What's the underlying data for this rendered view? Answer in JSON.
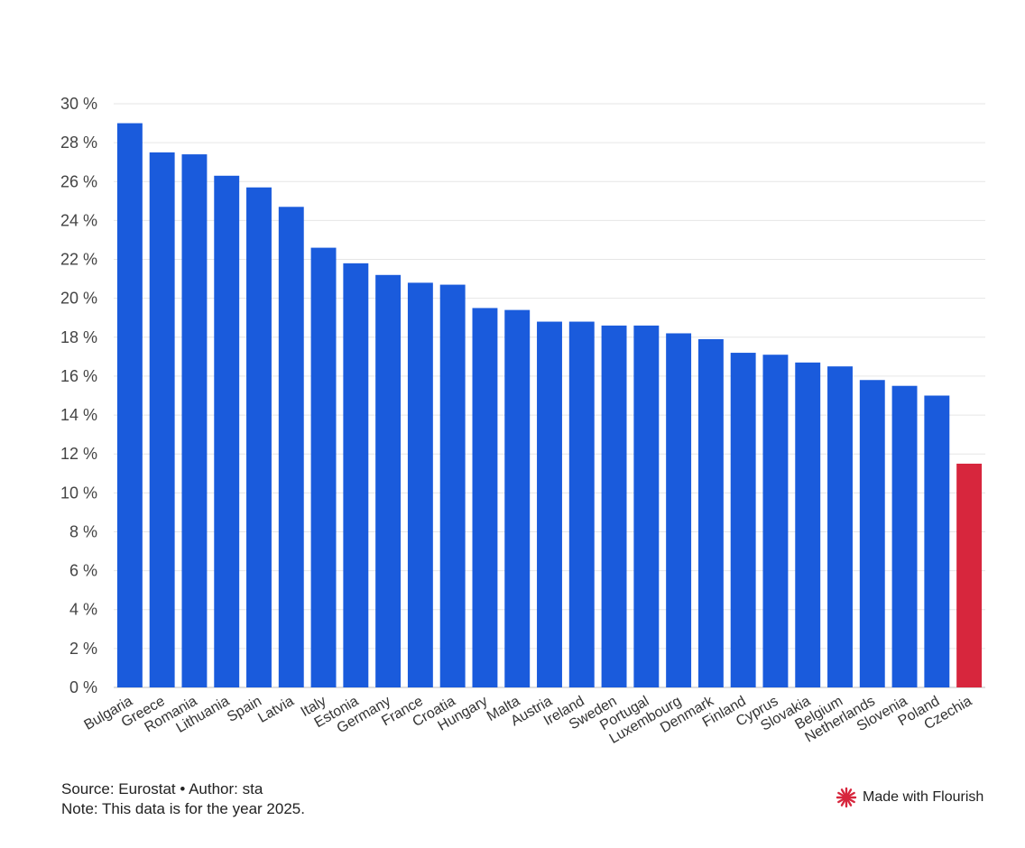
{
  "chart_data": {
    "type": "bar",
    "title": "",
    "xlabel": "",
    "ylabel": "",
    "ylim": [
      0,
      30
    ],
    "y_ticks": [
      0,
      2,
      4,
      6,
      8,
      10,
      12,
      14,
      16,
      18,
      20,
      22,
      24,
      26,
      28,
      30
    ],
    "y_tick_suffix": " %",
    "grid": true,
    "categories": [
      "Bulgaria",
      "Greece",
      "Romania",
      "Lithuania",
      "Spain",
      "Latvia",
      "Italy",
      "Estonia",
      "Germany",
      "France",
      "Croatia",
      "Hungary",
      "Malta",
      "Austria",
      "Ireland",
      "Sweden",
      "Portugal",
      "Luxembourg",
      "Denmark",
      "Finland",
      "Cyprus",
      "Slovakia",
      "Belgium",
      "Netherlands",
      "Slovenia",
      "Poland",
      "Czechia"
    ],
    "values": [
      29.0,
      27.5,
      27.4,
      26.3,
      25.7,
      24.7,
      22.6,
      21.8,
      21.2,
      20.8,
      20.7,
      19.5,
      19.4,
      18.8,
      18.8,
      18.6,
      18.6,
      18.2,
      17.9,
      17.2,
      17.1,
      16.7,
      16.5,
      15.8,
      15.5,
      15.0,
      11.5
    ],
    "colors": {
      "default": "#1a5bdc",
      "highlight": "#d7263d",
      "highlight_category": "Czechia",
      "grid": "#e6e6e6"
    }
  },
  "footer": {
    "source": "Source: Eurostat • Author: sta",
    "note": "Note: This data is for the year 2025."
  },
  "badge": {
    "label": "Made with Flourish",
    "icon": "flourish-logo-icon",
    "color": "#d7263d"
  }
}
